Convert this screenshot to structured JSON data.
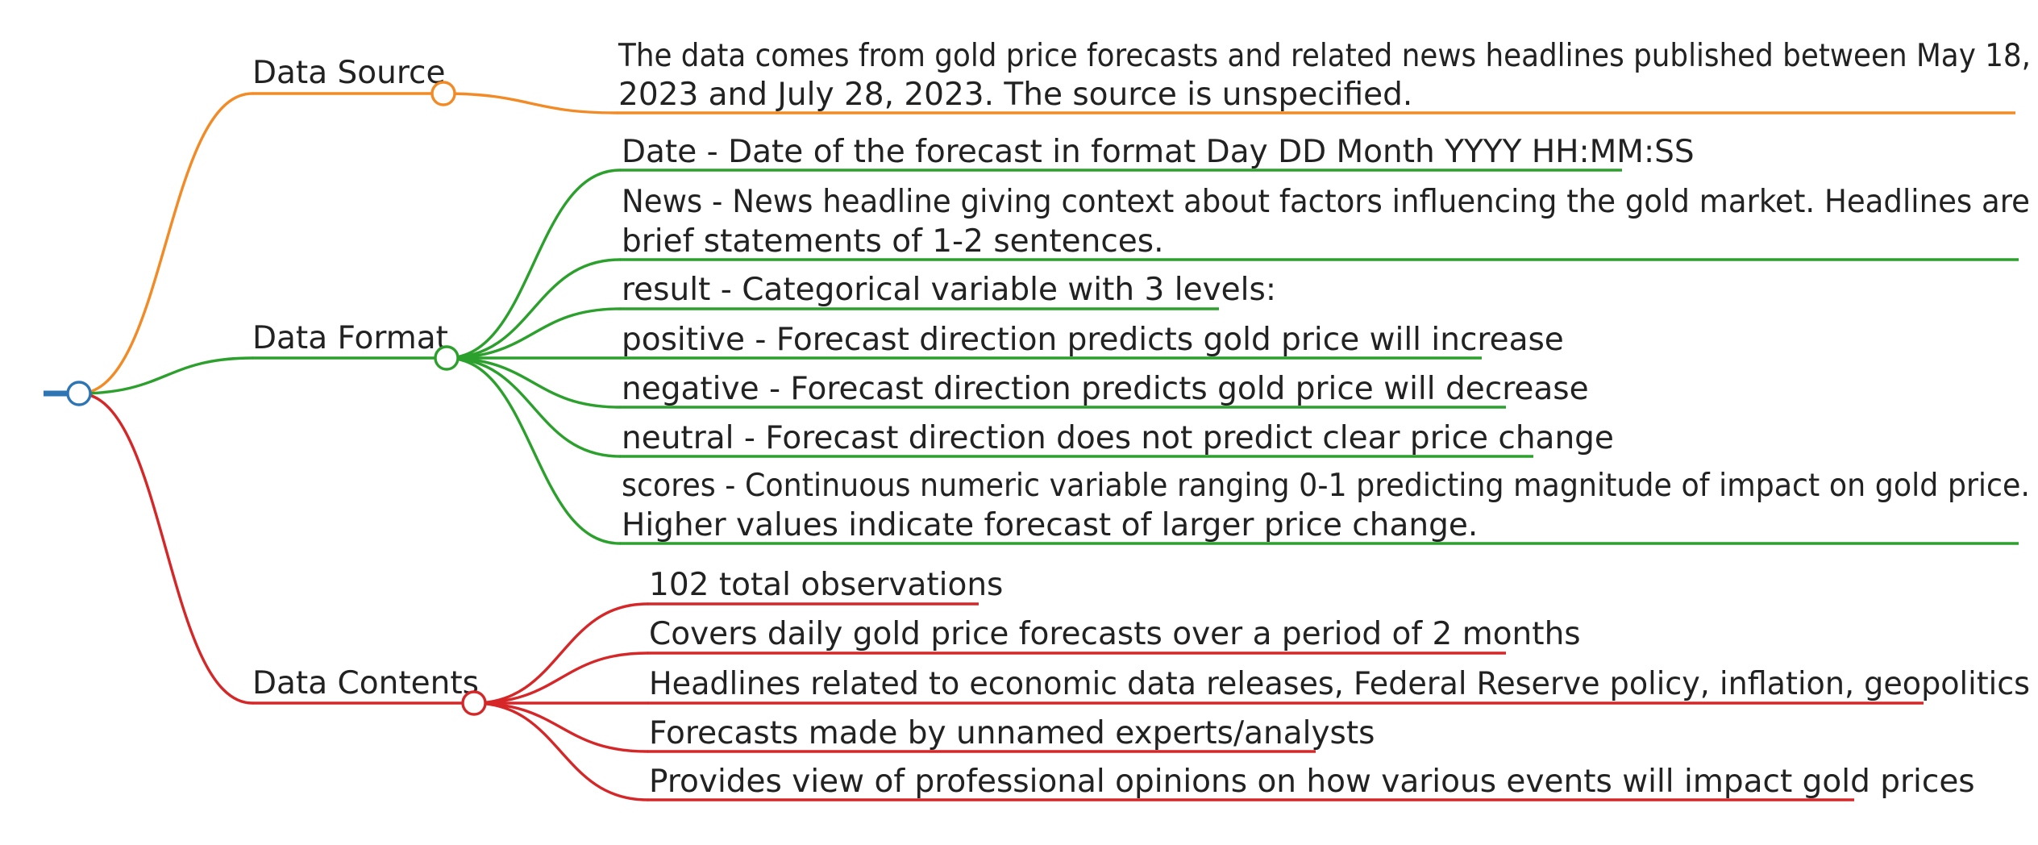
{
  "colors": {
    "root": "#2e75b6",
    "source": "#f28a25",
    "format": "#2ca02c",
    "contents": "#d62728",
    "text": "#222222"
  },
  "branches": [
    {
      "id": "source",
      "label": "Data Source",
      "items": [
        {
          "lines": [
            "The data comes from gold price forecasts and related news headlines published between May 18,",
            "2023 and July 28, 2023. The source is unspecified."
          ]
        }
      ]
    },
    {
      "id": "format",
      "label": "Data Format",
      "items": [
        {
          "lines": [
            "Date - Date of the forecast in format Day DD Month YYYY HH:MM:SS"
          ]
        },
        {
          "lines": [
            "News - News headline giving context about factors influencing the gold market. Headlines are",
            "brief statements of 1-2 sentences."
          ]
        },
        {
          "lines": [
            "result - Categorical variable with 3 levels:"
          ]
        },
        {
          "lines": [
            "positive - Forecast direction predicts gold price will increase"
          ]
        },
        {
          "lines": [
            "negative - Forecast direction predicts gold price will decrease"
          ]
        },
        {
          "lines": [
            "neutral - Forecast direction does not predict clear price change"
          ]
        },
        {
          "lines": [
            "scores - Continuous numeric variable ranging 0-1 predicting magnitude of impact on gold price.",
            "Higher values indicate forecast of larger price change."
          ]
        }
      ]
    },
    {
      "id": "contents",
      "label": "Data Contents",
      "items": [
        {
          "lines": [
            "102 total observations"
          ]
        },
        {
          "lines": [
            "Covers daily gold price forecasts over a period of 2 months"
          ]
        },
        {
          "lines": [
            "Headlines related to economic data releases, Federal Reserve policy, inflation, geopolitics"
          ]
        },
        {
          "lines": [
            "Forecasts made by unnamed experts/analysts"
          ]
        },
        {
          "lines": [
            "Provides view of professional opinions on how various events will impact gold prices"
          ]
        }
      ]
    }
  ]
}
